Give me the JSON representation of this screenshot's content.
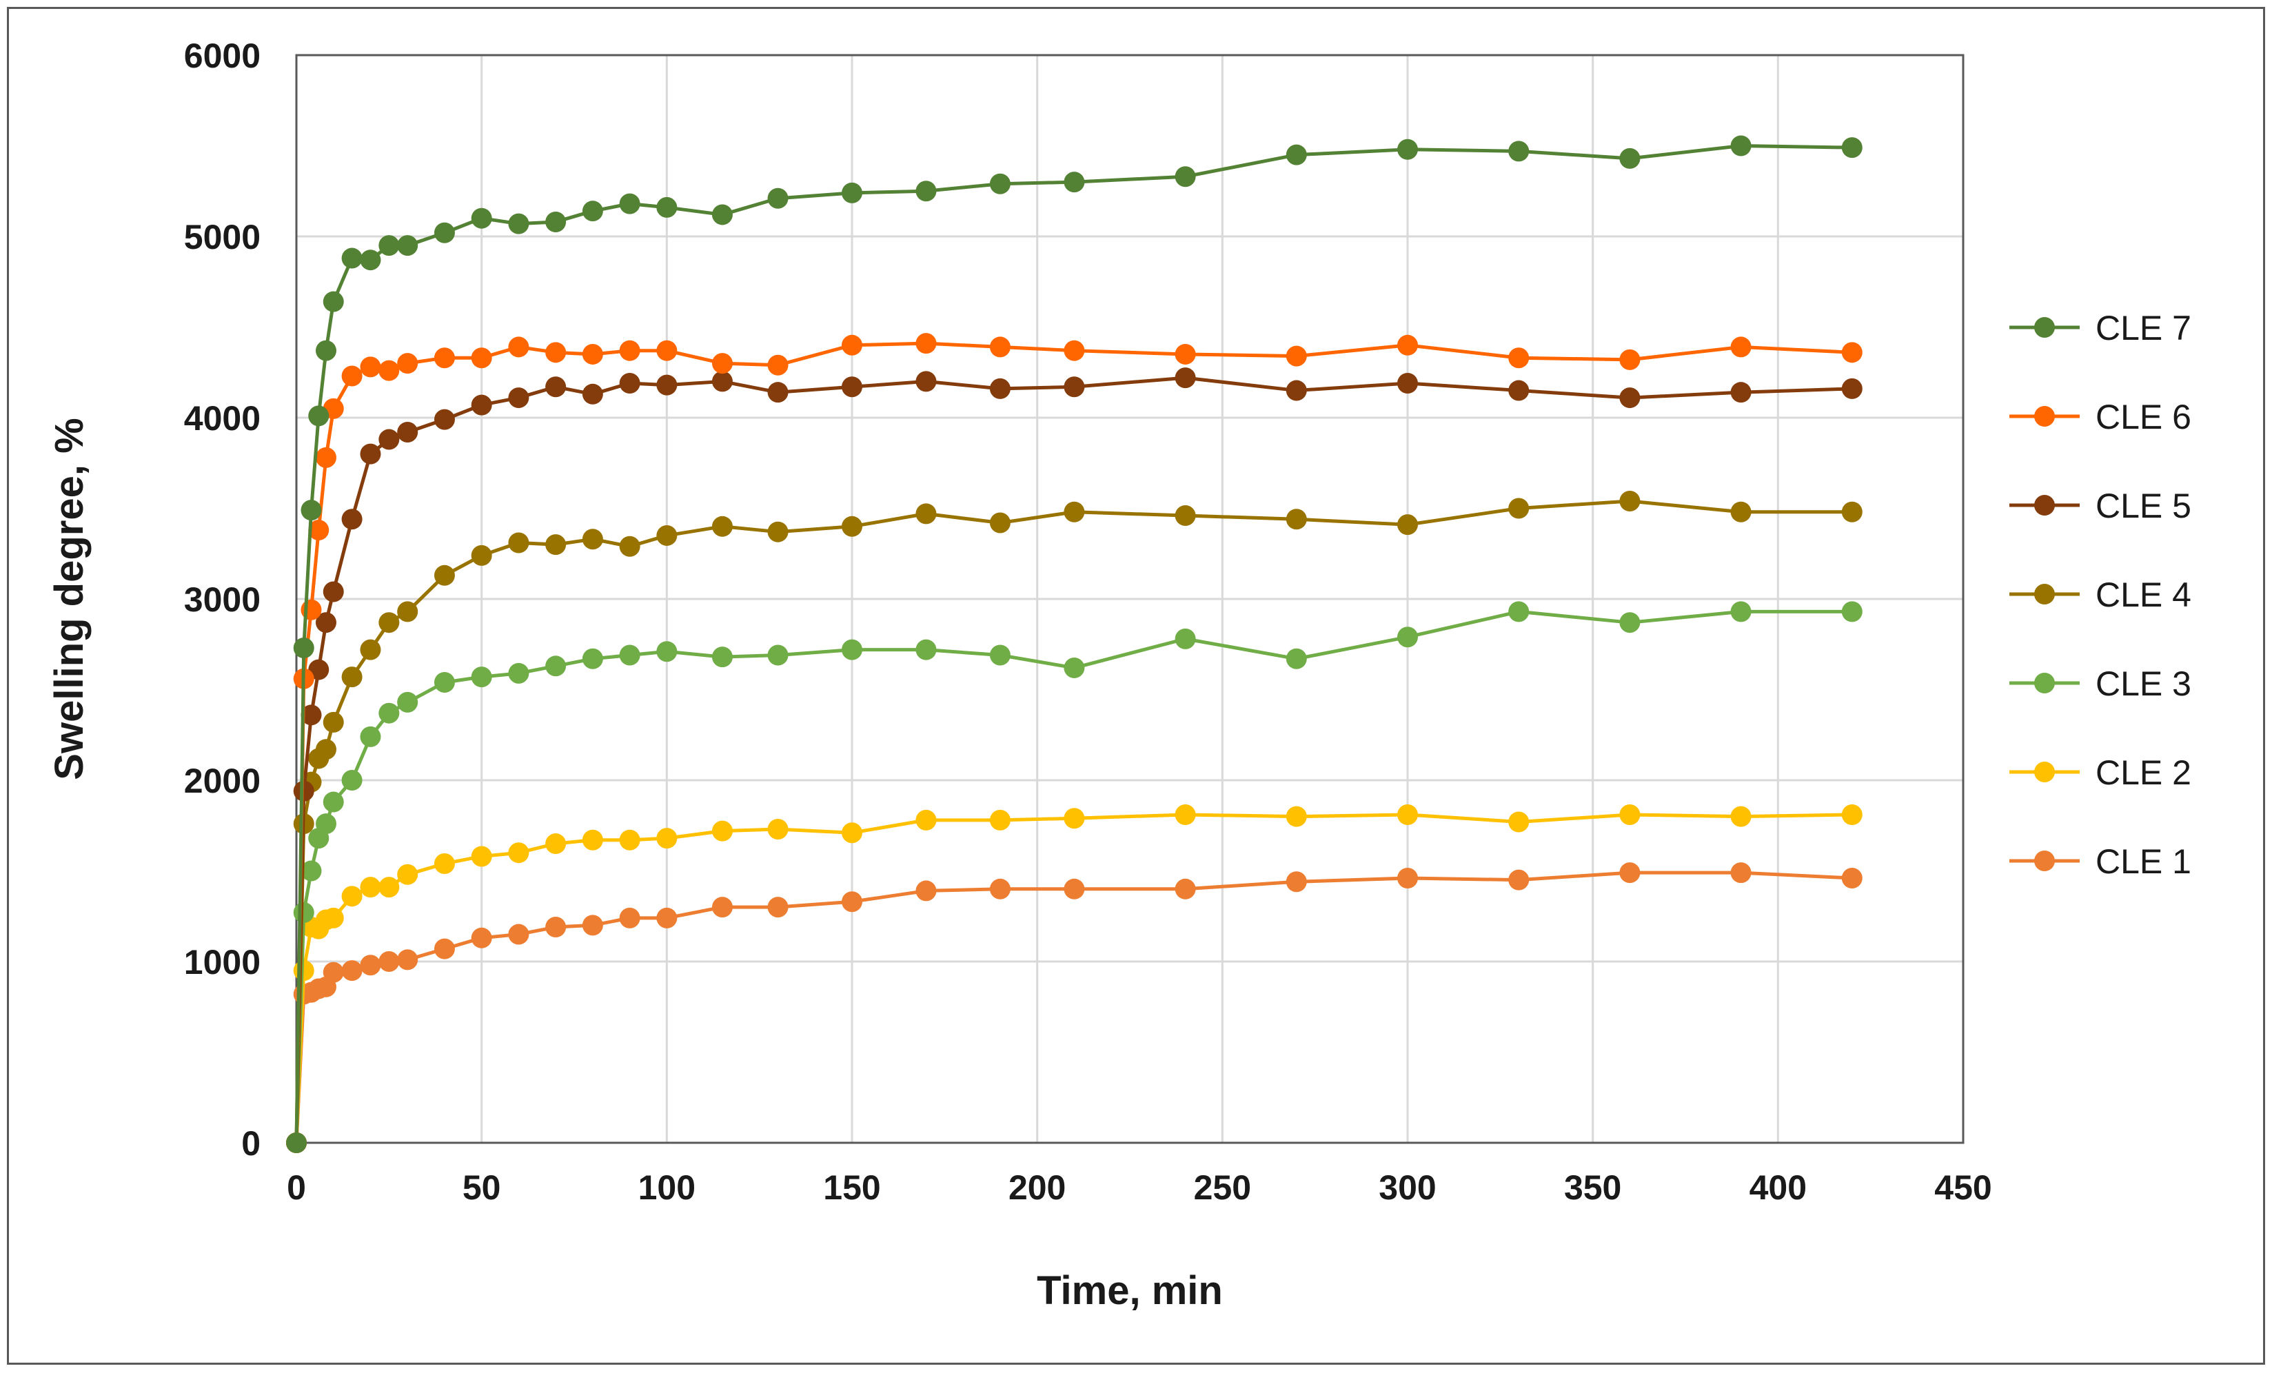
{
  "chart_data": {
    "type": "line",
    "title": "",
    "xlabel": "Time, min",
    "ylabel": "Swelling degree, %",
    "xlim": [
      0,
      450
    ],
    "ylim": [
      0,
      6000
    ],
    "xticks": [
      0,
      50,
      100,
      150,
      200,
      250,
      300,
      350,
      400,
      450
    ],
    "yticks": [
      0,
      1000,
      2000,
      3000,
      4000,
      5000,
      6000
    ],
    "grid": "vertical and horizontal",
    "legend_position": "right",
    "x": [
      0,
      2,
      4,
      6,
      8,
      10,
      15,
      20,
      25,
      30,
      40,
      50,
      60,
      70,
      80,
      90,
      100,
      115,
      130,
      150,
      170,
      190,
      210,
      240,
      270,
      300,
      330,
      360,
      390,
      420
    ],
    "series": [
      {
        "name": "CLE 7",
        "color": "#548235",
        "values": [
          0,
          2730,
          3490,
          4010,
          4370,
          4640,
          4880,
          4870,
          4950,
          4950,
          5020,
          5100,
          5070,
          5080,
          5140,
          5180,
          5160,
          5120,
          5210,
          5240,
          5250,
          5290,
          5300,
          5330,
          5450,
          5480,
          5470,
          5430,
          5500,
          5490
        ]
      },
      {
        "name": "CLE 6",
        "color": "#FF6600",
        "values": [
          0,
          2560,
          2940,
          3380,
          3780,
          4050,
          4230,
          4280,
          4260,
          4300,
          4330,
          4330,
          4390,
          4360,
          4350,
          4370,
          4370,
          4300,
          4290,
          4400,
          4410,
          4390,
          4370,
          4350,
          4340,
          4400,
          4330,
          4320,
          4390,
          4360
        ]
      },
      {
        "name": "CLE 5",
        "color": "#843C0C",
        "values": [
          0,
          1940,
          2360,
          2610,
          2870,
          3040,
          3440,
          3800,
          3880,
          3920,
          3990,
          4070,
          4110,
          4170,
          4130,
          4190,
          4180,
          4200,
          4140,
          4170,
          4200,
          4160,
          4170,
          4220,
          4150,
          4190,
          4150,
          4110,
          4140,
          4160
        ]
      },
      {
        "name": "CLE 4",
        "color": "#997300",
        "values": [
          0,
          1760,
          1990,
          2120,
          2170,
          2320,
          2570,
          2720,
          2870,
          2930,
          3130,
          3240,
          3310,
          3300,
          3330,
          3290,
          3350,
          3400,
          3370,
          3400,
          3470,
          3420,
          3480,
          3460,
          3440,
          3410,
          3500,
          3540,
          3480,
          3480
        ]
      },
      {
        "name": "CLE 3",
        "color": "#70AD47",
        "values": [
          0,
          1270,
          1500,
          1680,
          1760,
          1880,
          2000,
          2240,
          2370,
          2430,
          2540,
          2570,
          2590,
          2630,
          2670,
          2690,
          2710,
          2680,
          2690,
          2720,
          2720,
          2690,
          2620,
          2780,
          2670,
          2790,
          2930,
          2870,
          2930,
          2930
        ]
      },
      {
        "name": "CLE 2",
        "color": "#FFC000",
        "values": [
          0,
          950,
          1190,
          1180,
          1230,
          1240,
          1360,
          1410,
          1410,
          1480,
          1540,
          1580,
          1600,
          1650,
          1670,
          1670,
          1680,
          1720,
          1730,
          1710,
          1780,
          1780,
          1790,
          1810,
          1800,
          1810,
          1770,
          1810,
          1800,
          1810
        ]
      },
      {
        "name": "CLE 1",
        "color": "#ED7D31",
        "values": [
          0,
          820,
          830,
          850,
          860,
          940,
          950,
          980,
          1000,
          1010,
          1070,
          1130,
          1150,
          1190,
          1200,
          1240,
          1240,
          1300,
          1300,
          1330,
          1390,
          1400,
          1400,
          1400,
          1440,
          1460,
          1450,
          1490,
          1490,
          1460
        ]
      }
    ]
  }
}
